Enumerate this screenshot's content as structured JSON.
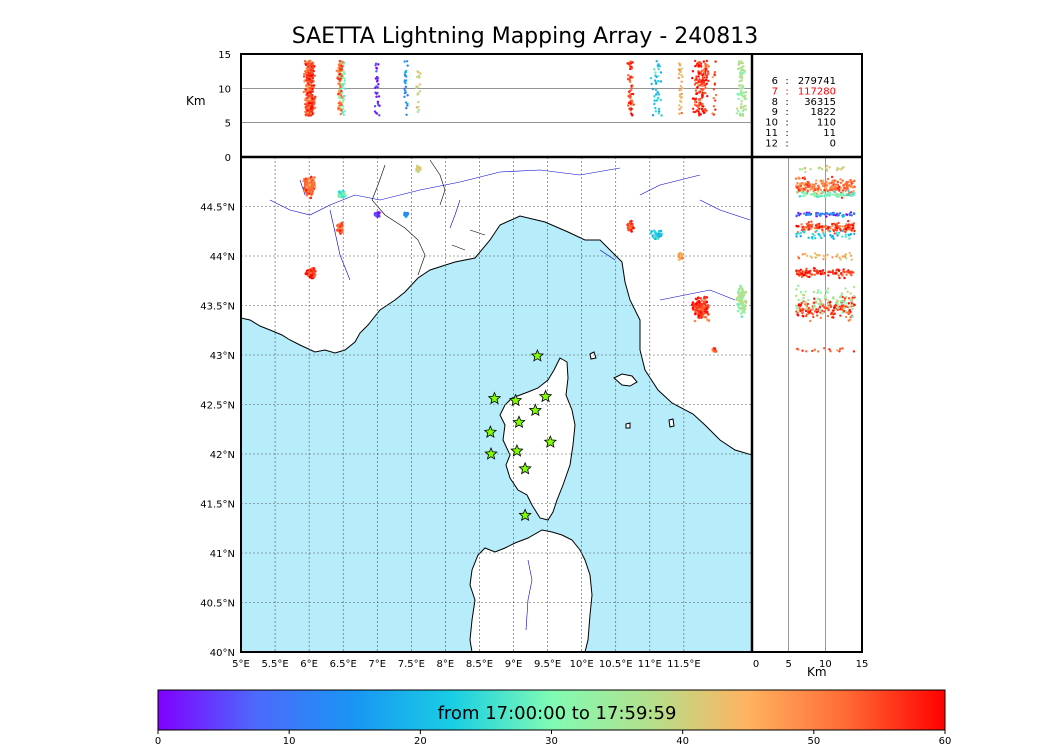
{
  "title": "SAETTA Lightning Mapping Array - 240813",
  "stations_table": [
    {
      "n": "6",
      "count": "279741",
      "color": "#000000"
    },
    {
      "n": "7",
      "count": "117280",
      "color": "#ff0000"
    },
    {
      "n": "8",
      "count": "36315",
      "color": "#000000"
    },
    {
      "n": "9",
      "count": "1822",
      "color": "#000000"
    },
    {
      "n": "10",
      "count": "110",
      "color": "#000000"
    },
    {
      "n": "11",
      "count": "11",
      "color": "#000000"
    },
    {
      "n": "12",
      "count": "0",
      "color": "#000000"
    }
  ],
  "colorbar": {
    "caption": "from 17:00:00 to 17:59:59",
    "ticks": [
      "0",
      "10",
      "20",
      "30",
      "40",
      "50",
      "60"
    ],
    "range": [
      0,
      60
    ],
    "colors": [
      "#8000ff",
      "#4c6afc",
      "#1996f3",
      "#19cee3",
      "#80fbb4",
      "#b3e08c",
      "#ffb360",
      "#ff6a35",
      "#ff0000"
    ]
  },
  "colors": {
    "sea": "#b7ecfb",
    "land": "#ffffff",
    "coast": "#000000",
    "rivers": "#0000cc",
    "stations": "#7fff00",
    "grid": "#555555"
  },
  "chart_data": {
    "type": "scatter",
    "title": "SAETTA Lightning Mapping Array - 240813",
    "colormap": "rainbow (time, minutes after 17:00)",
    "map": {
      "xlim": [
        5,
        12.5
      ],
      "ylim": [
        40,
        45.0
      ],
      "xticks": [
        "5°E",
        "5.5°E",
        "6°E",
        "6.5°E",
        "7°E",
        "7.5°E",
        "8°E",
        "8.5°E",
        "9°E",
        "9.5°E",
        "10°E",
        "10.5°E",
        "11°E",
        "11.5°E"
      ],
      "xtick_values": [
        5,
        5.5,
        6,
        6.5,
        7,
        7.5,
        8,
        8.5,
        9,
        9.5,
        10,
        10.5,
        11,
        11.5
      ],
      "yticks": [
        "40°N",
        "40.5°N",
        "41°N",
        "41.5°N",
        "42°N",
        "42.5°N",
        "43°N",
        "43.5°N",
        "44°N",
        "44.5°N"
      ],
      "ytick_values": [
        40,
        40.5,
        41,
        41.5,
        42,
        42.5,
        43,
        43.5,
        44,
        44.5
      ],
      "grid": true
    },
    "altitude_lon_panel": {
      "ylabel": "Km",
      "ylim": [
        0,
        15
      ],
      "yticks": [
        "0",
        "5",
        "10",
        "15"
      ],
      "ytick_values": [
        0,
        5,
        10,
        15
      ]
    },
    "altitude_lat_panel": {
      "xlabel": "Km",
      "xlim": [
        0,
        15
      ],
      "xticks": [
        "0",
        "5",
        "10",
        "15"
      ],
      "xtick_values": [
        0,
        5,
        10,
        15
      ]
    },
    "stations": [
      {
        "lon": 9.35,
        "lat": 42.99
      },
      {
        "lon": 8.72,
        "lat": 42.56
      },
      {
        "lon": 9.03,
        "lat": 42.54
      },
      {
        "lon": 9.47,
        "lat": 42.58
      },
      {
        "lon": 9.32,
        "lat": 42.44
      },
      {
        "lon": 9.08,
        "lat": 42.32
      },
      {
        "lon": 8.66,
        "lat": 42.22
      },
      {
        "lon": 8.67,
        "lat": 42.0
      },
      {
        "lon": 9.05,
        "lat": 42.03
      },
      {
        "lon": 9.54,
        "lat": 42.12
      },
      {
        "lon": 9.17,
        "lat": 41.85
      },
      {
        "lon": 9.17,
        "lat": 41.38
      }
    ],
    "clusters": [
      {
        "lon": 6.0,
        "lat": 44.7,
        "lon_spread": 0.1,
        "lat_spread": 0.12,
        "t": 52,
        "n": 200
      },
      {
        "lon": 6.48,
        "lat": 44.62,
        "lon_spread": 0.07,
        "lat_spread": 0.05,
        "t": 30,
        "n": 70
      },
      {
        "lon": 6.45,
        "lat": 44.28,
        "lon_spread": 0.06,
        "lat_spread": 0.07,
        "t": 52,
        "n": 70
      },
      {
        "lon": 6.02,
        "lat": 43.83,
        "lon_spread": 0.1,
        "lat_spread": 0.06,
        "t": 57,
        "n": 110
      },
      {
        "lon": 7.0,
        "lat": 44.42,
        "lon_spread": 0.05,
        "lat_spread": 0.03,
        "t": 2,
        "n": 30
      },
      {
        "lon": 7.42,
        "lat": 44.42,
        "lon_spread": 0.04,
        "lat_spread": 0.03,
        "t": 14,
        "n": 25
      },
      {
        "lon": 7.6,
        "lat": 44.88,
        "lon_spread": 0.05,
        "lat_spread": 0.04,
        "t": 40,
        "n": 20
      },
      {
        "lon": 10.72,
        "lat": 44.3,
        "lon_spread": 0.06,
        "lat_spread": 0.06,
        "t": 56,
        "n": 60
      },
      {
        "lon": 11.1,
        "lat": 44.22,
        "lon_spread": 0.1,
        "lat_spread": 0.07,
        "t": 22,
        "n": 40
      },
      {
        "lon": 11.45,
        "lat": 44.0,
        "lon_spread": 0.06,
        "lat_spread": 0.05,
        "t": 45,
        "n": 30
      },
      {
        "lon": 11.75,
        "lat": 43.47,
        "lon_spread": 0.15,
        "lat_spread": 0.15,
        "t": 56,
        "n": 150
      },
      {
        "lon": 12.35,
        "lat": 43.55,
        "lon_spread": 0.08,
        "lat_spread": 0.2,
        "t": 35,
        "n": 80
      },
      {
        "lon": 11.95,
        "lat": 43.05,
        "lon_spread": 0.05,
        "lat_spread": 0.03,
        "t": 55,
        "n": 15
      }
    ],
    "note": "time 0-60 min after 17:00"
  }
}
